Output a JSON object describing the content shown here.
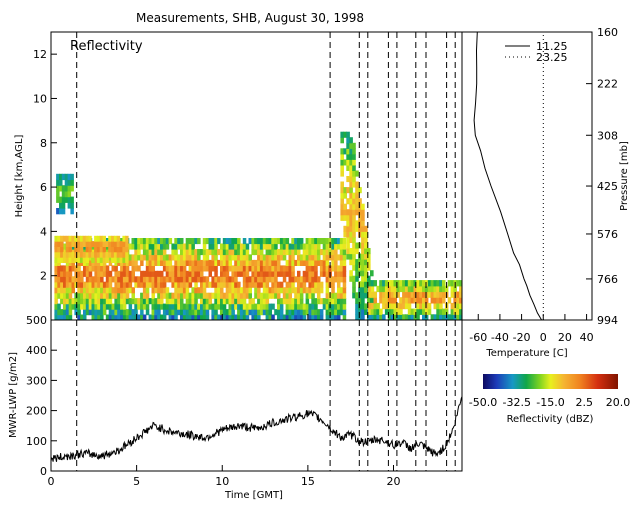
{
  "chart_data": [
    {
      "type": "heatmap",
      "title": "Measurements, SHB, August 30, 1998",
      "annotation": "Reflectivity",
      "ylabel": "Height [km,AGL]",
      "xlim": [
        0,
        24
      ],
      "ylim": [
        0,
        13
      ],
      "y_ticks": [
        2,
        4,
        6,
        8,
        10,
        12
      ],
      "vertical_dashed_lines_hours": [
        1.5,
        16.3,
        18.0,
        18.5,
        19.7,
        20.2,
        21.3,
        21.9,
        23.1,
        23.6
      ],
      "cloud_regions": [
        {
          "name": "low-stratiform-layer",
          "x_range": [
            0.2,
            17.2
          ],
          "height_km_range": [
            0,
            3.7
          ],
          "reflectivity_dbz_range": [
            -50,
            5
          ]
        },
        {
          "name": "upper-layer",
          "x_range": [
            0.2,
            4.5
          ],
          "height_km_range": [
            2.6,
            3.8
          ],
          "reflectivity_dbz_range": [
            -25,
            0
          ]
        },
        {
          "name": "convective-tower",
          "x_range": [
            16.9,
            18.8
          ],
          "height_km_range": [
            0,
            8.5
          ],
          "reflectivity_dbz_range": [
            -45,
            -5
          ]
        },
        {
          "name": "isolated-echo",
          "x_range": [
            0.3,
            1.3
          ],
          "height_km_range": [
            4.8,
            6.6
          ],
          "reflectivity_dbz_range": [
            -45,
            -20
          ]
        },
        {
          "name": "late-boundary-layer",
          "x_range": [
            18.5,
            24
          ],
          "height_km_range": [
            0,
            1.8
          ],
          "reflectivity_dbz_range": [
            -45,
            0
          ]
        }
      ]
    },
    {
      "type": "line",
      "xlabel": "Time [GMT]",
      "ylabel": "MWR-LWP [g/m2]",
      "xlim": [
        0,
        24
      ],
      "ylim": [
        0,
        500
      ],
      "x_ticks": [
        0,
        5,
        10,
        15,
        20
      ],
      "y_ticks": [
        0,
        100,
        200,
        300,
        400,
        500
      ],
      "vertical_dashed_lines_hours": [
        1.5,
        16.3,
        18.0,
        18.5,
        19.7,
        20.2,
        21.3,
        21.9,
        23.1,
        23.6
      ],
      "series": [
        {
          "x": [
            0,
            1,
            2,
            3,
            4,
            5,
            5.5,
            6,
            6.5,
            7,
            8,
            9,
            10,
            11,
            12,
            13,
            14,
            15,
            15.5,
            16,
            16.5,
            17,
            17.5,
            18,
            18.5,
            19,
            19.5,
            20,
            20.5,
            21,
            21.5,
            22,
            22.5,
            23,
            23.5,
            24
          ],
          "y": [
            40,
            50,
            58,
            50,
            70,
            110,
            130,
            150,
            140,
            130,
            120,
            110,
            135,
            150,
            140,
            160,
            175,
            190,
            180,
            160,
            130,
            110,
            120,
            100,
            95,
            105,
            100,
            85,
            95,
            75,
            90,
            70,
            55,
            80,
            140,
            250
          ]
        }
      ]
    },
    {
      "type": "line",
      "xlabel": "Temperature [C]",
      "ylabel": "Pressure [mb]",
      "x_ticks": [
        "-60",
        "-40",
        "-20",
        "0",
        "20",
        "40"
      ],
      "y_ticks": [
        "160",
        "222",
        "308",
        "425",
        "576",
        "766",
        "994"
      ],
      "xlim": [
        -75,
        45
      ],
      "series": [
        {
          "name": "11.25",
          "pressure_mb": [
            994,
            950,
            900,
            850,
            800,
            766,
            700,
            650,
            576,
            500,
            425,
            380,
            340,
            308,
            280,
            250,
            222,
            200,
            180,
            160
          ],
          "temperature_c": [
            -2,
            -5,
            -8,
            -12,
            -15,
            -17,
            -22,
            -27,
            -33,
            -40,
            -48,
            -53,
            -58,
            -62,
            -63,
            -62,
            -62,
            -62,
            -61,
            -60
          ]
        },
        {
          "name": "23.25",
          "pressure_mb": [
            994,
            160
          ],
          "temperature_c": [
            0,
            0
          ]
        }
      ]
    },
    {
      "type": "heatmap",
      "colorbar_label": "Reflectivity (dBZ)",
      "tick_labels": [
        "-50.0",
        "-32.5",
        "-15.0",
        "2.5",
        "20.0"
      ],
      "range": [
        -50,
        20
      ]
    }
  ]
}
